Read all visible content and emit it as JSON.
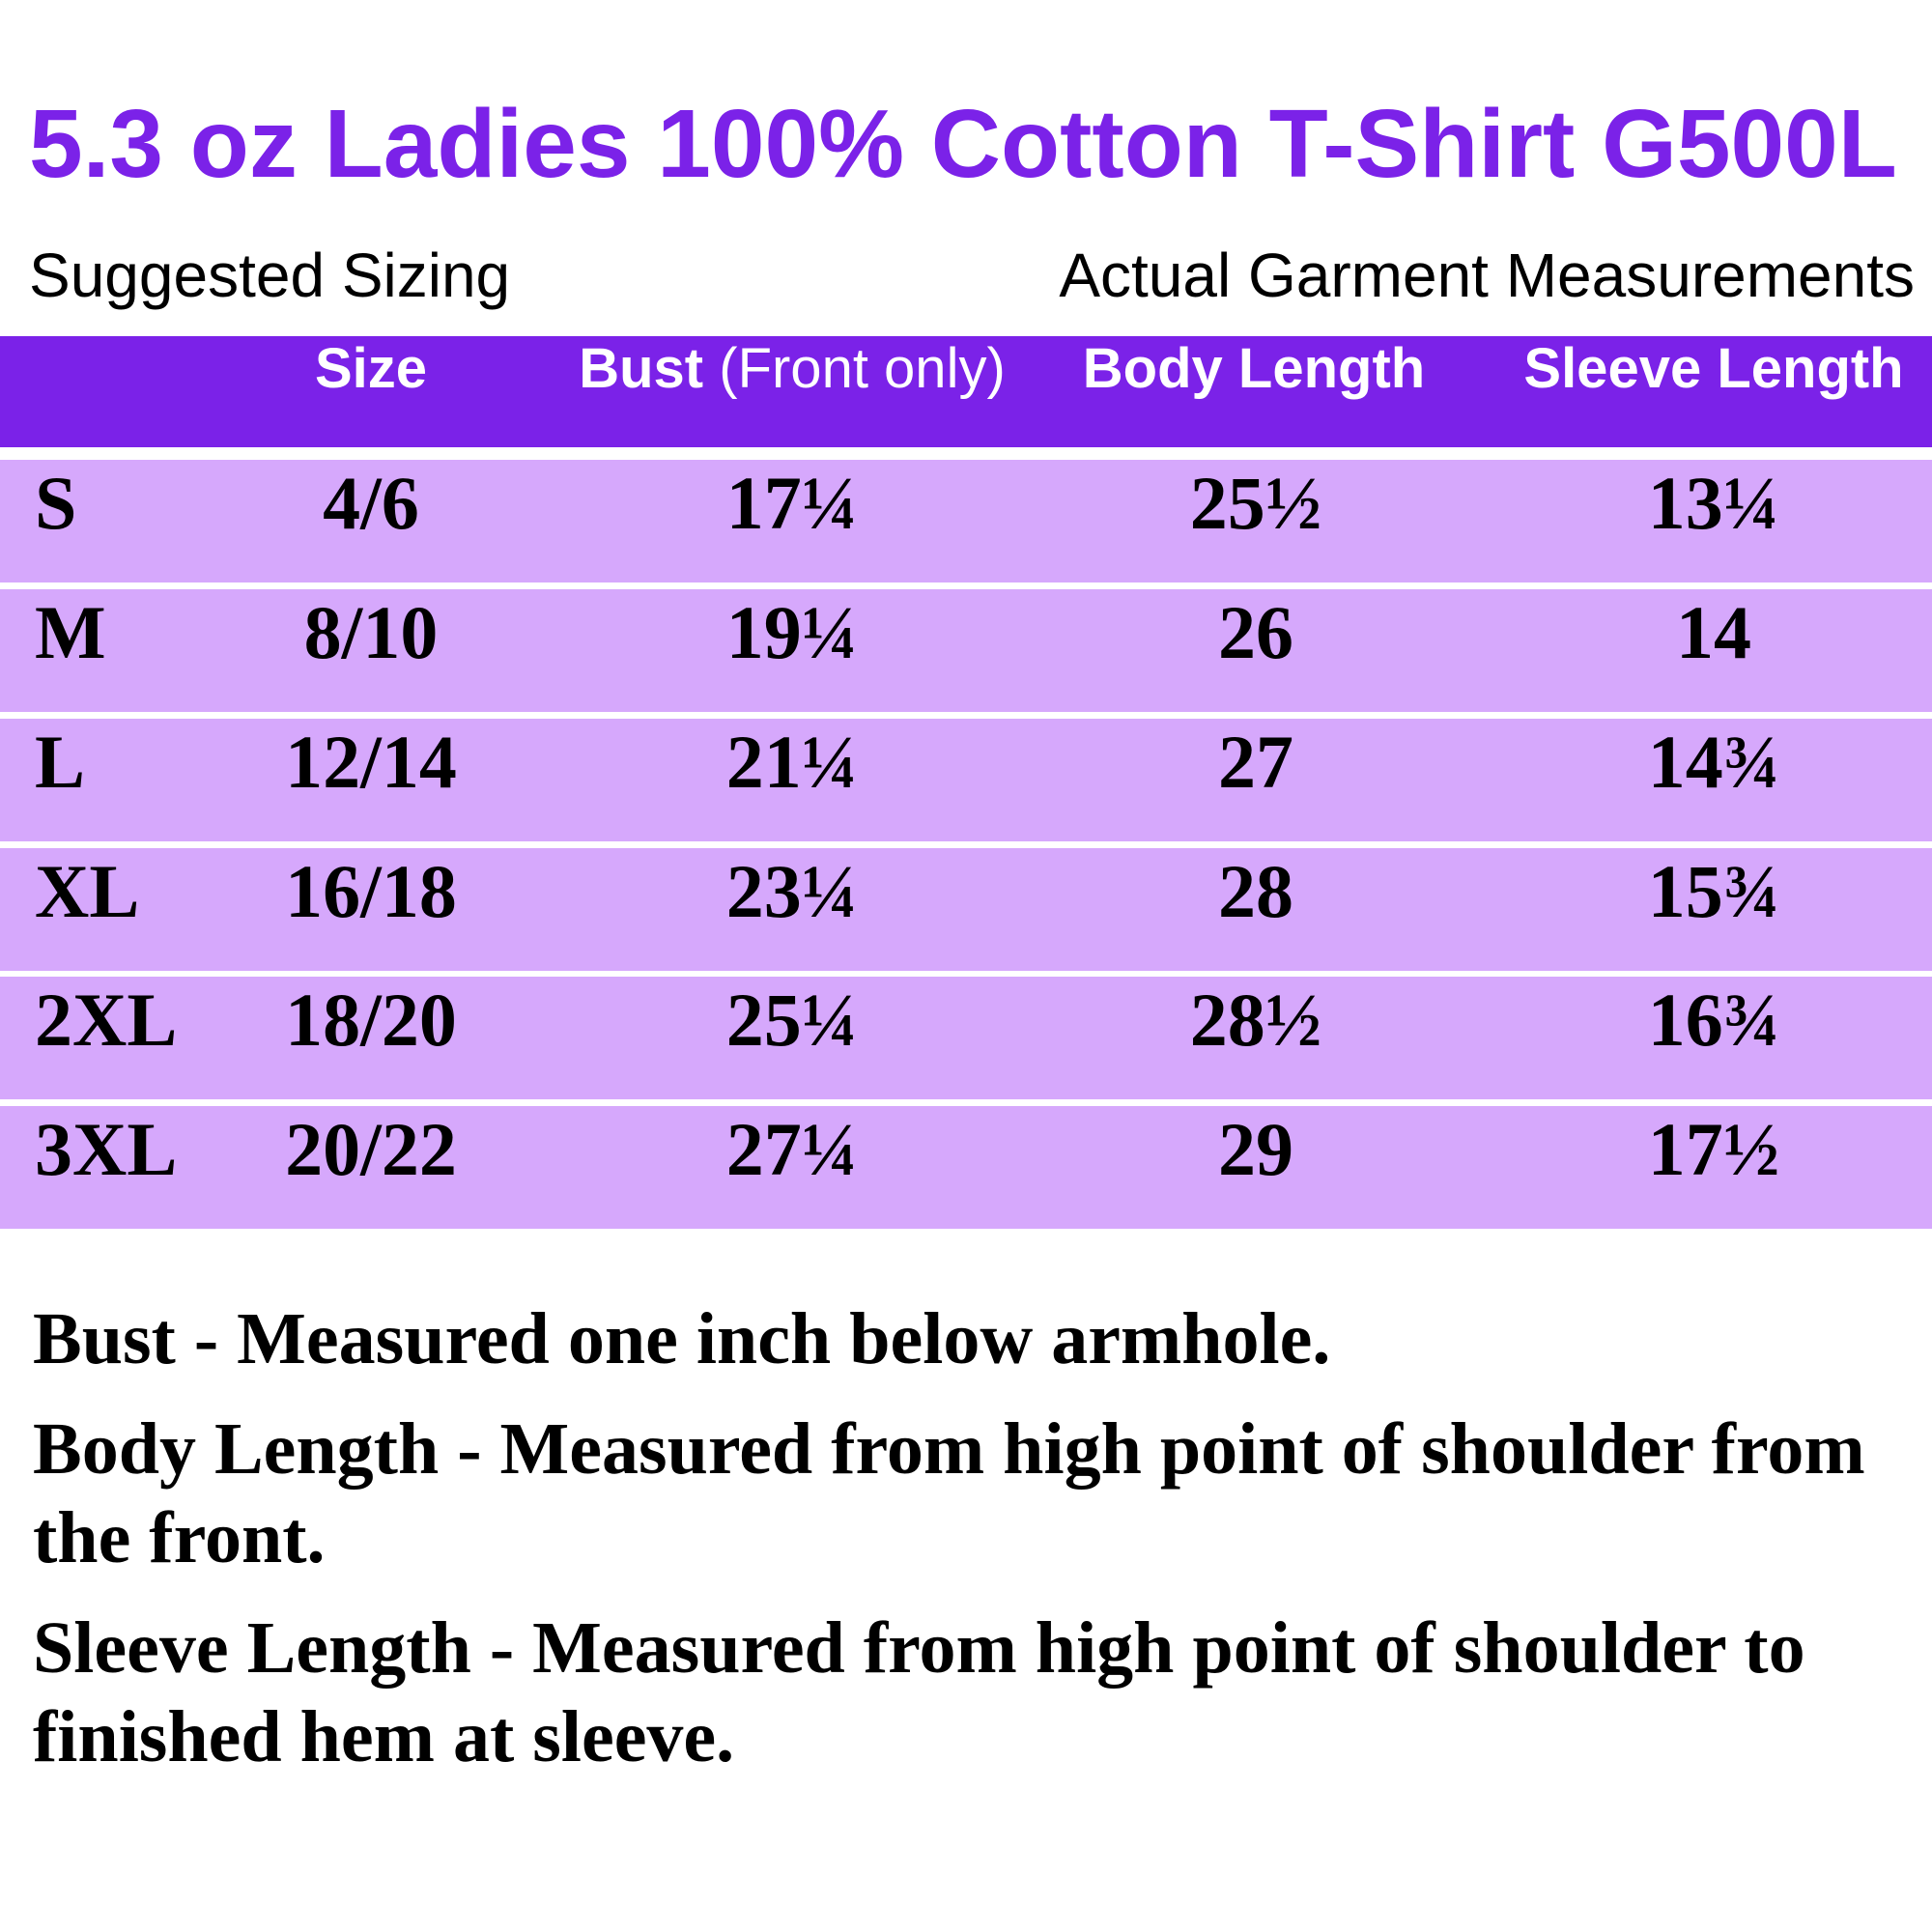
{
  "colors": {
    "accent": "#7B22E8",
    "row": "#D6A8FC"
  },
  "title": "5.3 oz Ladies 100% Cotton T-Shirt G500L",
  "subheadings": {
    "left": "Suggested Sizing",
    "right": "Actual Garment Measurements"
  },
  "table": {
    "headers": {
      "size": "Size",
      "bust": "Bust",
      "bust_note": "(Front only)",
      "body_length": "Body Length",
      "sleeve_length": "Sleeve Length"
    },
    "rows": [
      {
        "label": "S",
        "size": "4/6",
        "bust": "17¼",
        "body": "25½",
        "sleeve": "13¼"
      },
      {
        "label": "M",
        "size": "8/10",
        "bust": "19¼",
        "body": "26",
        "sleeve": "14"
      },
      {
        "label": "L",
        "size": "12/14",
        "bust": "21¼",
        "body": "27",
        "sleeve": "14¾"
      },
      {
        "label": "XL",
        "size": "16/18",
        "bust": "23¼",
        "body": "28",
        "sleeve": "15¾"
      },
      {
        "label": "2XL",
        "size": "18/20",
        "bust": "25¼",
        "body": "28½",
        "sleeve": "16¾"
      },
      {
        "label": "3XL",
        "size": "20/22",
        "bust": "27¼",
        "body": "29",
        "sleeve": "17½"
      }
    ]
  },
  "notes": [
    "Bust - Measured one inch below armhole.",
    "Body Length - Measured from high point of shoulder from the front.",
    "Sleeve Length - Measured from high point of shoulder to finished hem at sleeve."
  ]
}
